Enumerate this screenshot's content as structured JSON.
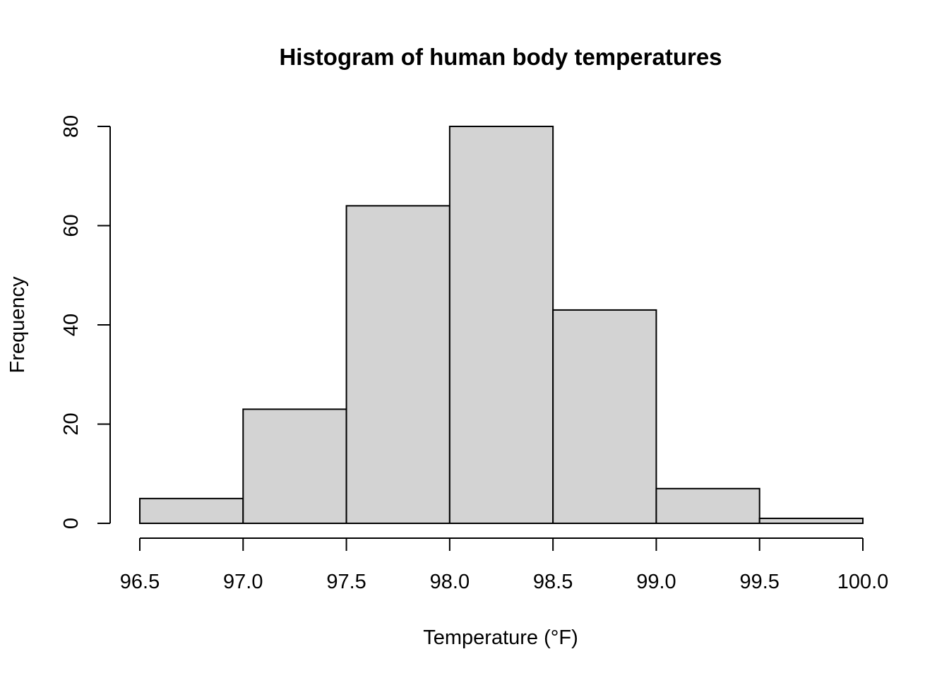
{
  "chart_data": {
    "type": "bar",
    "title": "Histogram of human body temperatures",
    "xlabel": "Temperature (°F)",
    "ylabel": "Frequency",
    "bins": [
      {
        "from": 96.5,
        "to": 97.0,
        "count": 5
      },
      {
        "from": 97.0,
        "to": 97.5,
        "count": 23
      },
      {
        "from": 97.5,
        "to": 98.0,
        "count": 64
      },
      {
        "from": 98.0,
        "to": 98.5,
        "count": 80
      },
      {
        "from": 98.5,
        "to": 99.0,
        "count": 43
      },
      {
        "from": 99.0,
        "to": 99.5,
        "count": 7
      },
      {
        "from": 99.5,
        "to": 100.0,
        "count": 1
      }
    ],
    "xlim": [
      96.5,
      100.0
    ],
    "ylim": [
      0,
      80
    ],
    "x_ticks": [
      "96.5",
      "97.0",
      "97.5",
      "98.0",
      "98.5",
      "99.0",
      "99.5",
      "100.0"
    ],
    "y_ticks": [
      "0",
      "20",
      "40",
      "60",
      "80"
    ],
    "grid": false,
    "legend": "none",
    "colors": {
      "bar_fill": "#d3d3d3",
      "bar_stroke": "#000000",
      "axis": "#000000"
    }
  }
}
